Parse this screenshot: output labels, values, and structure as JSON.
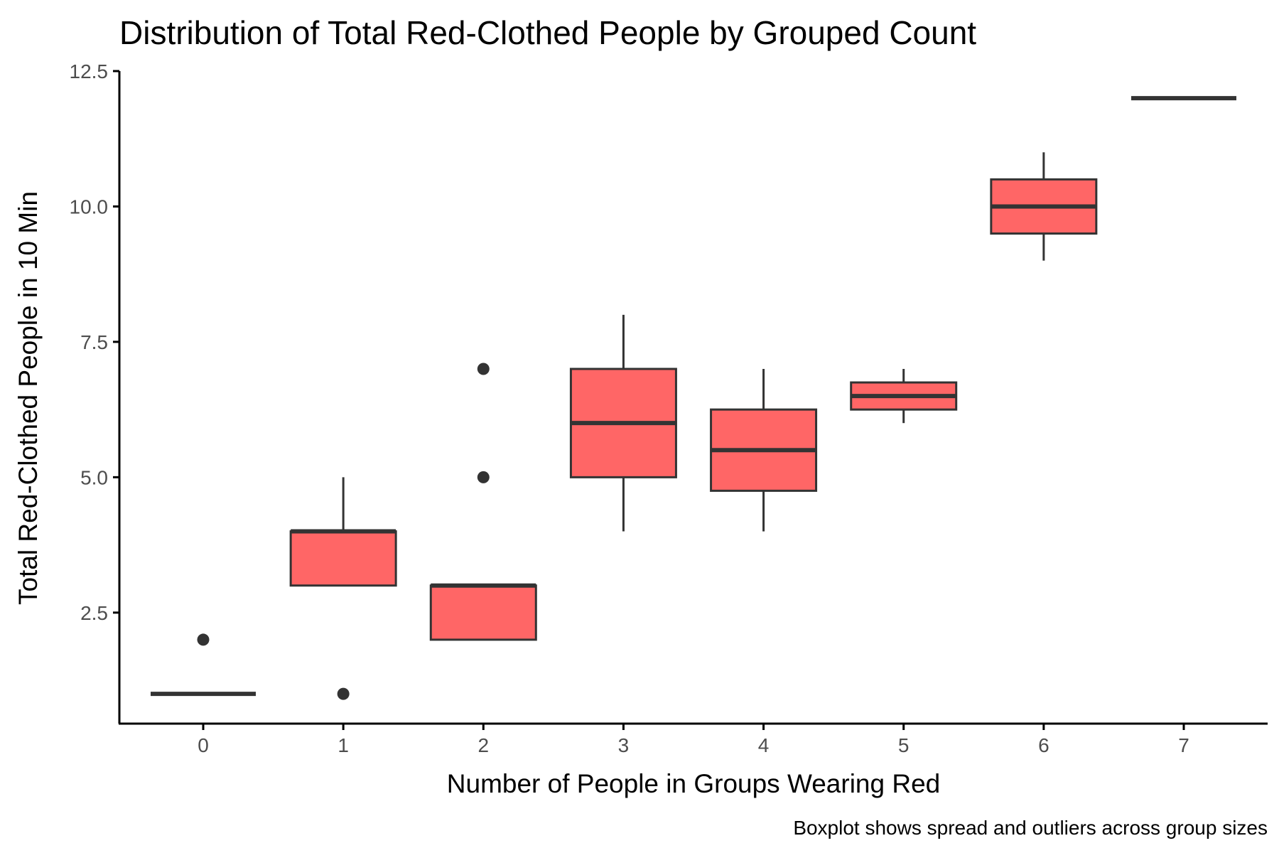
{
  "chart_data": {
    "type": "boxplot",
    "title": "Distribution of Total Red-Clothed People by Grouped Count",
    "xlabel": "Number of People in Groups Wearing Red",
    "ylabel": "Total Red-Clothed People in 10 Min",
    "caption": "Boxplot shows spread and outliers across group sizes",
    "ylim": [
      0.45,
      12.5
    ],
    "y_ticks": [
      2.5,
      5.0,
      7.5,
      10.0,
      12.5
    ],
    "y_tick_labels": [
      "2.5",
      "5.0",
      "7.5",
      "10.0",
      "12.5"
    ],
    "categories": [
      "0",
      "1",
      "2",
      "3",
      "4",
      "5",
      "6",
      "7"
    ],
    "box_fill": "#ff6666",
    "line_color": "#333333",
    "grid": false,
    "legend": "none",
    "boxes": [
      {
        "group": "0",
        "whisker_low": 1,
        "q1": 1,
        "median": 1,
        "q3": 1,
        "whisker_high": 1,
        "outliers": [
          2
        ]
      },
      {
        "group": "1",
        "whisker_low": 3,
        "q1": 3,
        "median": 4,
        "q3": 4,
        "whisker_high": 5,
        "outliers": [
          1
        ]
      },
      {
        "group": "2",
        "whisker_low": 2,
        "q1": 2,
        "median": 3,
        "q3": 3,
        "whisker_high": 3,
        "outliers": [
          5,
          7
        ]
      },
      {
        "group": "3",
        "whisker_low": 4,
        "q1": 5,
        "median": 6,
        "q3": 7,
        "whisker_high": 8,
        "outliers": []
      },
      {
        "group": "4",
        "whisker_low": 4,
        "q1": 4.75,
        "median": 5.5,
        "q3": 6.25,
        "whisker_high": 7,
        "outliers": []
      },
      {
        "group": "5",
        "whisker_low": 6,
        "q1": 6.25,
        "median": 6.5,
        "q3": 6.75,
        "whisker_high": 7,
        "outliers": []
      },
      {
        "group": "6",
        "whisker_low": 9,
        "q1": 9.5,
        "median": 10,
        "q3": 10.5,
        "whisker_high": 11,
        "outliers": []
      },
      {
        "group": "7",
        "whisker_low": 12,
        "q1": 12,
        "median": 12,
        "q3": 12,
        "whisker_high": 12,
        "outliers": []
      }
    ]
  }
}
